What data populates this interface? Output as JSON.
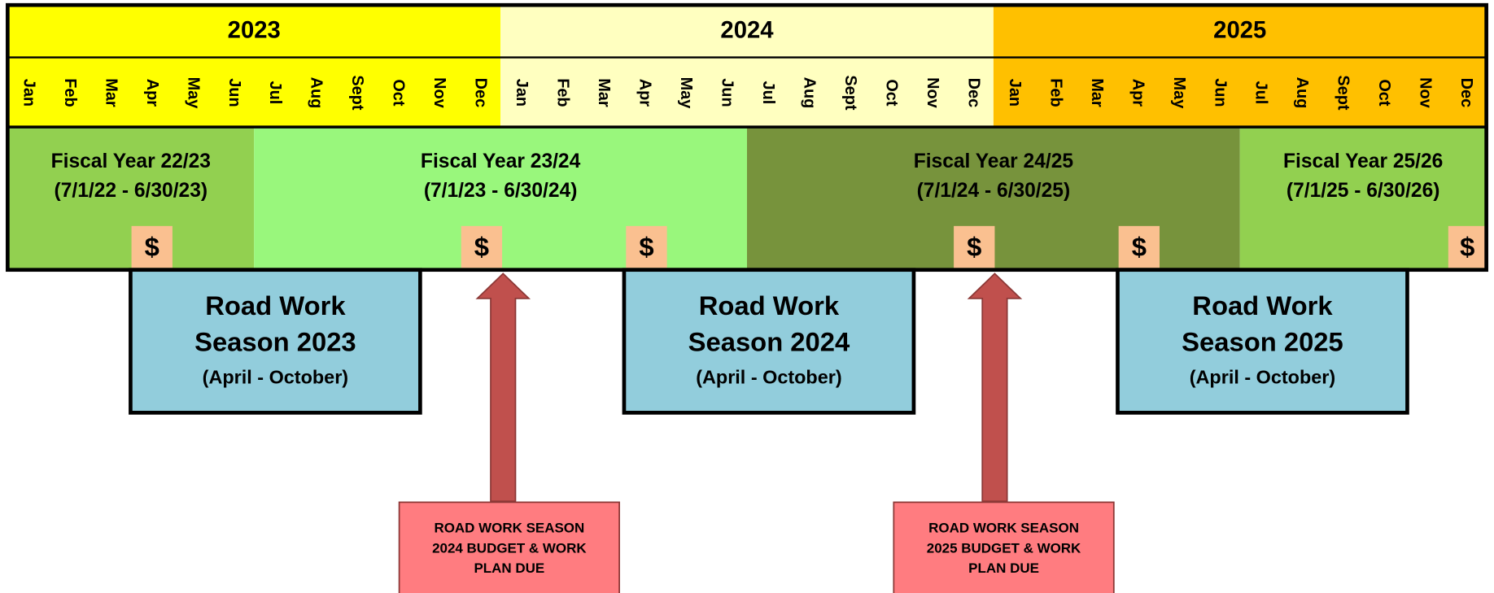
{
  "years": [
    {
      "label": "2023",
      "months": [
        "Jan",
        "Feb",
        "Mar",
        "Apr",
        "May",
        "Jun",
        "Jul",
        "Aug",
        "Sept",
        "Oct",
        "Nov",
        "Dec"
      ]
    },
    {
      "label": "2024",
      "months": [
        "Jan",
        "Feb",
        "Mar",
        "Apr",
        "May",
        "Jun",
        "Jul",
        "Aug",
        "Sept",
        "Oct",
        "Nov",
        "Dec"
      ]
    },
    {
      "label": "2025",
      "months": [
        "Jan",
        "Feb",
        "Mar",
        "Apr",
        "May",
        "Jun",
        "Jul",
        "Aug",
        "Sept",
        "Oct",
        "Nov",
        "Dec"
      ]
    }
  ],
  "fiscal_years": [
    {
      "label": "Fiscal Year 22/23",
      "dates": "(7/1/22 - 6/30/23)"
    },
    {
      "label": "Fiscal Year 23/24",
      "dates": "(7/1/23 - 6/30/24)"
    },
    {
      "label": "Fiscal Year 24/25",
      "dates": "(7/1/24 - 6/30/25)"
    },
    {
      "label": "Fiscal Year  25/26",
      "dates": "(7/1/25 - 6/30/26)"
    }
  ],
  "payments": [
    "$",
    "$",
    "$",
    "$",
    "$",
    "$"
  ],
  "seasons": [
    {
      "line1": "Road Work",
      "line2": "Season 2023",
      "months": "(April - October)"
    },
    {
      "line1": "Road Work",
      "line2": "Season 2024",
      "months": "(April - October)"
    },
    {
      "line1": "Road Work",
      "line2": "Season 2025",
      "months": "(April - October)"
    }
  ],
  "deadlines": [
    {
      "lines": [
        "ROAD WORK SEASON",
        "2024 BUDGET & WORK",
        "PLAN DUE"
      ]
    },
    {
      "lines": [
        "ROAD WORK SEASON",
        "2025 BUDGET & WORK",
        "PLAN DUE"
      ]
    }
  ]
}
